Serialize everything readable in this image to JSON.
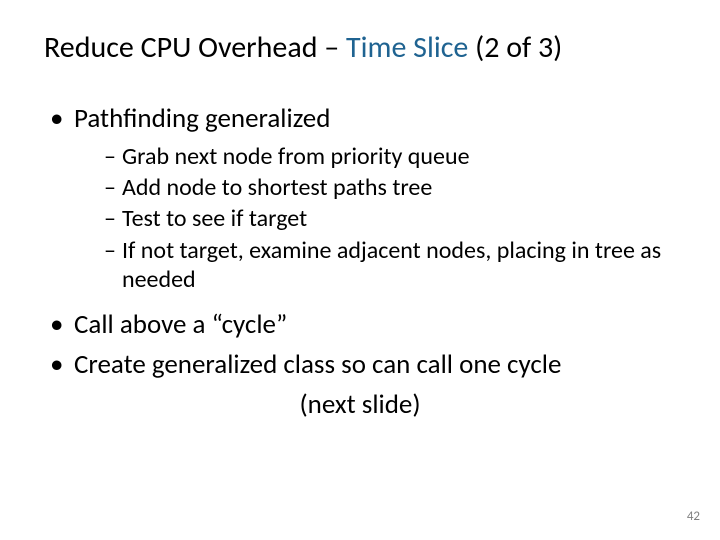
{
  "title": {
    "part1": "Reduce CPU Overhead ",
    "sep": "– ",
    "accent": "Time Slice",
    "part2": " (2 of 3)"
  },
  "bullets": {
    "l1a": "Pathfinding generalized",
    "sub": [
      "Grab next node from priority queue",
      "Add node to shortest paths tree",
      "Test to see if target",
      "If not target, examine adjacent nodes, placing in tree as needed"
    ],
    "l1b": "Call above a “cycle”",
    "l1c": "Create generalized class so can call one cycle",
    "l1c_cont": "(next slide)"
  },
  "pagenum": "42",
  "colors": {
    "accent": "#1f6391",
    "text": "#000000",
    "background": "#ffffff",
    "pagenum": "#7f7f7f"
  },
  "typography": {
    "title_fontsize": 30,
    "l1_fontsize": 27,
    "l2_fontsize": 24,
    "pagenum_fontsize": 13,
    "font_family": "Calibri"
  }
}
